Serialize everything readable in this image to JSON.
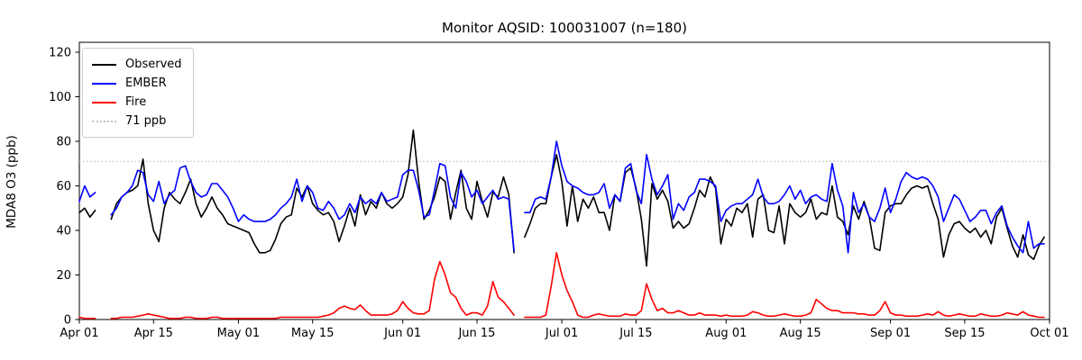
{
  "title": "Monitor AQSID: 100031007 (n=180)",
  "chart_data": {
    "type": "line",
    "title": "Monitor AQSID: 100031007 (n=180)",
    "xlabel": "",
    "ylabel": "MDA8 O3 (ppb)",
    "n_label": "n=180",
    "ylim": [
      0,
      124
    ],
    "yticks": [
      0,
      20,
      40,
      60,
      80,
      100,
      120
    ],
    "x_axis": {
      "total_days": 183,
      "start_label": "Apr 01",
      "end_label": "Oct 01",
      "ticks": [
        {
          "day": 0,
          "label": "Apr 01"
        },
        {
          "day": 14,
          "label": "Apr 15"
        },
        {
          "day": 30,
          "label": "May 01"
        },
        {
          "day": 44,
          "label": "May 15"
        },
        {
          "day": 61,
          "label": "Jun 01"
        },
        {
          "day": 75,
          "label": "Jun 15"
        },
        {
          "day": 91,
          "label": "Jul 01"
        },
        {
          "day": 105,
          "label": "Jul 15"
        },
        {
          "day": 122,
          "label": "Aug 01"
        },
        {
          "day": 136,
          "label": "Aug 15"
        },
        {
          "day": 153,
          "label": "Sep 01"
        },
        {
          "day": 167,
          "label": "Sep 15"
        },
        {
          "day": 183,
          "label": "Oct 01"
        }
      ]
    },
    "threshold": {
      "value": 71,
      "label": "71 ppb",
      "color": "#c0c0c0",
      "style": "dotted"
    },
    "legend": {
      "position": "upper left",
      "entries": [
        {
          "label": "Observed",
          "color": "#000000",
          "dash": "solid"
        },
        {
          "label": "EMBER",
          "color": "#0000ff",
          "dash": "solid"
        },
        {
          "label": "Fire",
          "color": "#ff0000",
          "dash": "solid"
        },
        {
          "label": "71 ppb",
          "color": "#c0c0c0",
          "dash": "dotted"
        }
      ]
    },
    "series": [
      {
        "name": "Observed",
        "color": "#000000",
        "values": [
          48,
          50,
          46,
          49,
          null,
          null,
          45,
          52,
          55,
          57,
          58,
          60,
          72,
          52,
          40,
          35,
          50,
          57,
          54,
          52,
          57,
          63,
          52,
          46,
          50,
          55,
          50,
          47,
          43,
          42,
          41,
          40,
          39,
          34,
          30,
          30,
          31,
          36,
          43,
          46,
          47,
          59,
          55,
          60,
          52,
          49,
          47,
          48,
          44,
          35,
          42,
          50,
          42,
          56,
          47,
          53,
          50,
          57,
          52,
          50,
          52,
          55,
          65,
          85,
          62,
          45,
          49,
          55,
          64,
          62,
          45,
          57,
          67,
          50,
          45,
          62,
          53,
          46,
          57,
          55,
          64,
          56,
          30,
          null,
          37,
          43,
          50,
          52,
          52,
          64,
          74,
          62,
          42,
          60,
          44,
          54,
          50,
          55,
          48,
          48,
          40,
          56,
          53,
          66,
          68,
          59,
          45,
          24,
          61,
          54,
          58,
          53,
          41,
          44,
          41,
          43,
          50,
          58,
          55,
          64,
          59,
          34,
          45,
          42,
          50,
          48,
          52,
          37,
          54,
          56,
          40,
          39,
          51,
          34,
          52,
          48,
          46,
          48,
          54,
          45,
          48,
          47,
          60,
          46,
          44,
          38,
          51,
          45,
          53,
          46,
          32,
          31,
          48,
          51,
          52,
          52,
          56,
          59,
          60,
          59,
          60,
          52,
          45,
          28,
          38,
          43,
          44,
          41,
          39,
          41,
          37,
          40,
          34,
          46,
          50,
          41,
          33,
          28,
          38,
          29,
          27,
          33,
          37
        ]
      },
      {
        "name": "EMBER",
        "color": "#0000ff",
        "values": [
          53,
          60,
          55,
          57,
          null,
          null,
          47,
          50,
          55,
          57,
          60,
          67,
          66,
          56,
          53,
          62,
          52,
          56,
          58,
          68,
          69,
          62,
          57,
          55,
          56,
          61,
          61,
          58,
          55,
          50,
          44,
          47,
          45,
          44,
          44,
          44,
          45,
          47,
          50,
          52,
          55,
          63,
          53,
          60,
          57,
          50,
          49,
          53,
          50,
          45,
          47,
          52,
          48,
          55,
          52,
          54,
          52,
          57,
          53,
          54,
          55,
          65,
          67,
          67,
          58,
          46,
          47,
          58,
          70,
          69,
          55,
          50,
          66,
          62,
          55,
          58,
          52,
          55,
          58,
          54,
          55,
          54,
          31,
          null,
          48,
          48,
          54,
          55,
          54,
          64,
          80,
          69,
          62,
          60,
          59,
          57,
          56,
          56,
          57,
          61,
          50,
          56,
          53,
          68,
          70,
          58,
          52,
          74,
          63,
          56,
          60,
          65,
          45,
          52,
          49,
          55,
          57,
          63,
          63,
          62,
          60,
          44,
          49,
          51,
          52,
          52,
          54,
          56,
          63,
          55,
          52,
          52,
          53,
          56,
          60,
          54,
          58,
          52,
          55,
          56,
          54,
          53,
          70,
          58,
          51,
          30,
          57,
          48,
          52,
          46,
          44,
          50,
          59,
          48,
          54,
          62,
          66,
          64,
          63,
          64,
          63,
          60,
          55,
          44,
          50,
          56,
          54,
          49,
          44,
          46,
          49,
          49,
          43,
          48,
          51,
          42,
          37,
          33,
          30,
          44,
          32,
          34,
          34
        ]
      },
      {
        "name": "Fire",
        "color": "#ff0000",
        "values": [
          1,
          0.5,
          0.5,
          0.5,
          null,
          null,
          0.5,
          0.5,
          1,
          1,
          1,
          1.5,
          2,
          2.5,
          2,
          1.5,
          1,
          0.5,
          0.5,
          0.5,
          1,
          1,
          0.5,
          0.5,
          0.5,
          1,
          1,
          0.5,
          0.5,
          0.5,
          0.5,
          0.5,
          0.5,
          0.5,
          0.5,
          0.5,
          0.5,
          0.5,
          1,
          1,
          1,
          1,
          1,
          1,
          1,
          1,
          1.5,
          2,
          3,
          5,
          6,
          5,
          4.5,
          6.5,
          4,
          2,
          2,
          2,
          2,
          2.5,
          4,
          8,
          5,
          3,
          2.5,
          2.5,
          4,
          18,
          26,
          20,
          12,
          10,
          5,
          2,
          3,
          3,
          2,
          6,
          17,
          10,
          8,
          5,
          2,
          null,
          1,
          1,
          1,
          1,
          2,
          15,
          30,
          20,
          13,
          8,
          2,
          1,
          1,
          2,
          2.5,
          2,
          1.5,
          1.5,
          1.5,
          2.5,
          2,
          2,
          4,
          16,
          9,
          4,
          5,
          3,
          3,
          4,
          3,
          2,
          2,
          3,
          2,
          2,
          2,
          1.5,
          2,
          1.5,
          1.5,
          1.5,
          2,
          3.5,
          3,
          2,
          1.5,
          1.5,
          2,
          2.5,
          2,
          1.5,
          1.5,
          2,
          3,
          9,
          7,
          5,
          4,
          4,
          3,
          3,
          3,
          2.5,
          2.5,
          2,
          2,
          4,
          8,
          3,
          2,
          2,
          1.5,
          1.5,
          1.5,
          2,
          2.5,
          2,
          3.5,
          2,
          1.5,
          2,
          2.5,
          2,
          1.5,
          1.5,
          2.5,
          2,
          1.5,
          1.5,
          2,
          3,
          2.5,
          2,
          3.5,
          2,
          1.5,
          1,
          1
        ]
      }
    ]
  }
}
